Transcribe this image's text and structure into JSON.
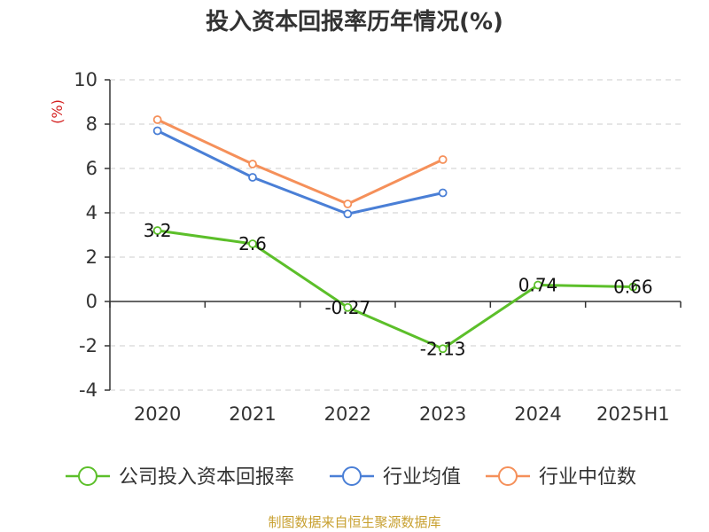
{
  "chart_data": {
    "type": "line",
    "title": "投入资本回报率历年情况(%)",
    "ylabel": "(%)",
    "xlabel": "",
    "categories": [
      "2020",
      "2021",
      "2022",
      "2023",
      "2024",
      "2025H1"
    ],
    "ylim": [
      -4,
      10
    ],
    "yticks": [
      -4,
      -2,
      0,
      2,
      4,
      6,
      8,
      10
    ],
    "grid": true,
    "legend_position": "bottom",
    "series": [
      {
        "name": "公司投入资本回报率",
        "color": "#5cbf2a",
        "values": [
          3.2,
          2.6,
          -0.27,
          -2.13,
          0.74,
          0.66
        ],
        "labels": [
          "3.2",
          "2.6",
          "-0.27",
          "-2.13",
          "0.74",
          "0.66"
        ]
      },
      {
        "name": "行业均值",
        "color": "#4a7fd6",
        "values": [
          7.7,
          5.6,
          3.95,
          4.9,
          null,
          null
        ]
      },
      {
        "name": "行业中位数",
        "color": "#f5905a",
        "values": [
          8.2,
          6.2,
          4.4,
          6.4,
          null,
          null
        ]
      }
    ]
  },
  "source_note": "制图数据来自恒生聚源数据库"
}
